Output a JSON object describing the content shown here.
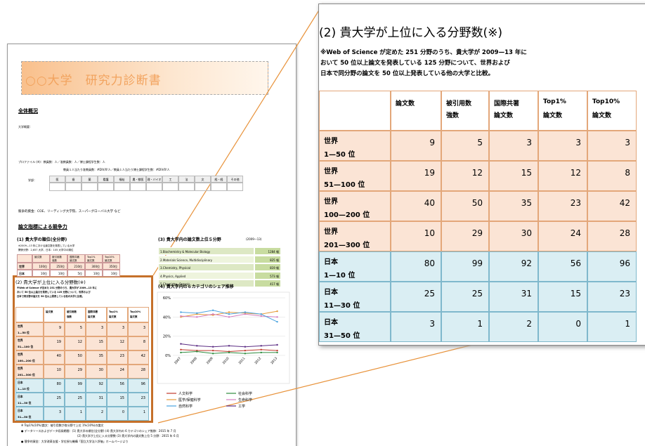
{
  "doc": {
    "title": "○○大学　研究力診断書",
    "overview": {
      "heading": "全体概況",
      "summary": "大学概要：",
      "profile": [
        "プロファイル (※)：教員数：人／准教員数：人／博士課程学生数：人",
        "教員１人当たり准教員数：#DIV/0!人／教員１人当たり博士課程学生数：#DIV/0!人"
      ],
      "faculty_label": "学部：",
      "faculties": [
        "医",
        "歯",
        "薬",
        "看護",
        "福祉",
        "農・獣医",
        "理・バイオ",
        "工",
        "法",
        "文",
        "経・経",
        "その他"
      ],
      "funding": "競争的資金：COE、リーディング大学院、スーパーグローバル大学 など"
    },
    "section_heading": "論文指標による競争力",
    "rank": {
      "title": "(1) 貴大学の順位(全分野)",
      "note": [
        "※2009—13 年における論文数を発表している大学",
        "関係分野：2,657 大学、日本：105 大学中の順位"
      ],
      "header": [
        [
          "論文数"
        ],
        [
          "被引用数",
          "強数"
        ],
        [
          "国際共著",
          "論文数"
        ],
        [
          "Top1%",
          "論文数"
        ],
        [
          "Top10%",
          "論文数"
        ]
      ],
      "rows": [
        {
          "label": "世界",
          "cells": [
            "100位",
            "250位",
            "210位",
            "300位",
            "350位"
          ]
        },
        {
          "label": "日本",
          "cells": [
            "10位",
            "10位",
            "5位",
            "10位",
            "10位"
          ]
        }
      ]
    },
    "top5": {
      "title": "(3) 貴大学内の論文数上位５分野",
      "period": "(2009—13)",
      "rows": [
        [
          "1.Biochemistry & Molecular Biology",
          "1284 報"
        ],
        [
          "2.Materials Science, Multidisciplinary",
          "825 報"
        ],
        [
          "3.Chemistry, Physical",
          "819 報"
        ],
        [
          "4.Physics, Applied",
          "573 報"
        ],
        [
          "5.Chemistry, Organic",
          "417 報"
        ]
      ]
    },
    "share": {
      "title": "(4) 貴大学内の６カテゴリのシェア推移",
      "chart": {
        "type": "line",
        "x": [
          "2007",
          "2008",
          "2009",
          "2010",
          "2011",
          "2012",
          "2013"
        ],
        "ylim": [
          0,
          60
        ],
        "yticks": [
          {
            "value": 0,
            "label": "0%"
          },
          {
            "value": 20,
            "label": "20%"
          },
          {
            "value": 40,
            "label": "40%"
          },
          {
            "value": 60,
            "label": "60%"
          }
        ],
        "grid": true,
        "series": [
          {
            "name": "人文科学",
            "color": "#c0392b",
            "values": [
              6,
              5,
              5,
              4,
              5,
              6,
              5
            ]
          },
          {
            "name": "社会科学",
            "color": "#2e8b3e",
            "values": [
              3,
              4,
              2,
              3,
              2,
              3,
              3
            ]
          },
          {
            "name": "医学/保健科学",
            "color": "#e59b3a",
            "values": [
              40,
              43,
              42,
              45,
              44,
              43,
              46
            ]
          },
          {
            "name": "生命科学",
            "color": "#d57fc0",
            "values": [
              41,
              40,
              43,
              40,
              43,
              41,
              40
            ]
          },
          {
            "name": "自然科学",
            "color": "#4aa3df",
            "values": [
              45,
              44,
              47,
              43,
              45,
              43,
              35
            ]
          },
          {
            "name": "工学",
            "color": "#5b2c83",
            "values": [
              12,
              10,
              9,
              10,
              9,
              10,
              11
            ]
          }
        ]
      }
    },
    "footnotes": [
      "※ Top1%(10%)論文：被引用数が各分野で上位 1%(10%)の論文",
      "● データソースおよびデータ収録期間：(1) 貴大学の順位(全分野) (4) 貴大学内の 6 カテゴリのシェア推移：2015 年 7 月",
      "(2) 貴大学が上位に入る分野数 (3) 貴大学内の論文数上位 5 分野：2015 年 6 月",
      "● 競争的資金：大学改革支援・学位授与機構「国立大学法人評価」ホームページより"
    ]
  },
  "zoom": {
    "title": "(2) 貴大学が上位に入る分野数(※)",
    "note": [
      "※Web of Science が定めた 251 分野のうち、貴大学が 2009—13 年に",
      "おいて 50 位以上論文を発表している 125 分野について、世界および",
      "日本で同分野の論文を 50 位以上発表している他の大学と比較。"
    ],
    "header": [
      [
        "論文数"
      ],
      [
        "被引用数",
        "強数"
      ],
      [
        "国際共著",
        "論文数"
      ],
      [
        "Top1%",
        "論文数"
      ],
      [
        "Top10%",
        "論文数"
      ]
    ],
    "rows": [
      {
        "label": [
          "世界",
          "1—50 位"
        ],
        "cells": [
          "9",
          "5",
          "3",
          "3",
          "3"
        ]
      },
      {
        "label": [
          "世界",
          "51—100 位"
        ],
        "cells": [
          "19",
          "12",
          "15",
          "12",
          "8"
        ]
      },
      {
        "label": [
          "世界",
          "100—200 位"
        ],
        "cells": [
          "40",
          "50",
          "35",
          "23",
          "42"
        ]
      },
      {
        "label": [
          "世界",
          "201—300 位"
        ],
        "cells": [
          "10",
          "29",
          "30",
          "24",
          "28"
        ]
      },
      {
        "label": [
          "日本",
          "1—10 位"
        ],
        "cells": [
          "80",
          "99",
          "92",
          "56",
          "96"
        ]
      },
      {
        "label": [
          "日本",
          "11—30 位"
        ],
        "cells": [
          "25",
          "25",
          "31",
          "15",
          "23"
        ]
      },
      {
        "label": [
          "日本",
          "31—50 位"
        ],
        "cells": [
          "3",
          "1",
          "2",
          "0",
          "1"
        ]
      }
    ]
  }
}
